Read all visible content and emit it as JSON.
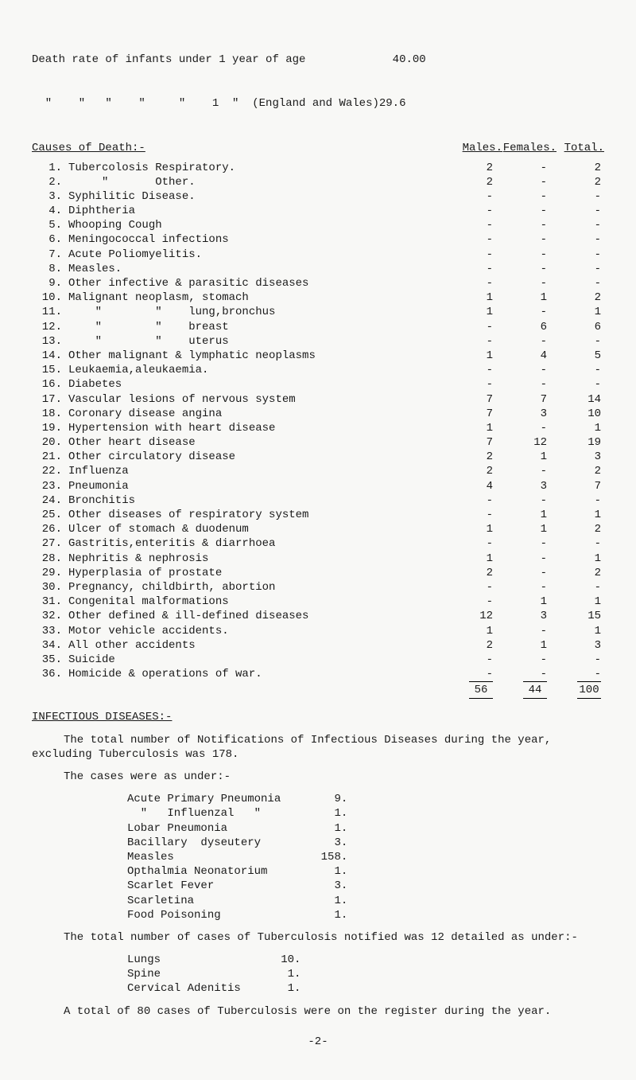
{
  "header": {
    "line1": "Death rate of infants under 1 year of age             40.00",
    "line2": "  \"    \"   \"    \"     \"    1  \"  (England and Wales)29.6"
  },
  "causes_heading": {
    "title": "Causes of Death:-",
    "col_m": "Males.",
    "col_f": "Females.",
    "col_t": "Total."
  },
  "causes": [
    {
      "n": "1.",
      "label": "Tubercolosis Respiratory.",
      "m": "2",
      "f": "-",
      "t": "2"
    },
    {
      "n": "2.",
      "label": "     \"       Other.",
      "m": "2",
      "f": "-",
      "t": "2"
    },
    {
      "n": "3.",
      "label": "Syphilitic Disease.",
      "m": "-",
      "f": "-",
      "t": "-"
    },
    {
      "n": "4.",
      "label": "Diphtheria",
      "m": "-",
      "f": "-",
      "t": "-"
    },
    {
      "n": "5.",
      "label": "Whooping Cough",
      "m": "-",
      "f": "-",
      "t": "-"
    },
    {
      "n": "6.",
      "label": "Meningococcal infections",
      "m": "-",
      "f": "-",
      "t": "-"
    },
    {
      "n": "7.",
      "label": "Acute Poliomyelitis.",
      "m": "-",
      "f": "-",
      "t": "-"
    },
    {
      "n": "8.",
      "label": "Measles.",
      "m": "-",
      "f": "-",
      "t": "-"
    },
    {
      "n": "9.",
      "label": "Other infective & parasitic diseases",
      "m": "-",
      "f": "-",
      "t": "-"
    },
    {
      "n": "10.",
      "label": "Malignant neoplasm, stomach",
      "m": "1",
      "f": "1",
      "t": "2"
    },
    {
      "n": "11.",
      "label": "    \"        \"    lung,bronchus",
      "m": "1",
      "f": "-",
      "t": "1"
    },
    {
      "n": "12.",
      "label": "    \"        \"    breast",
      "m": "-",
      "f": "6",
      "t": "6"
    },
    {
      "n": "13.",
      "label": "    \"        \"    uterus",
      "m": "-",
      "f": "-",
      "t": "-"
    },
    {
      "n": "14.",
      "label": "Other malignant & lymphatic neoplasms",
      "m": "1",
      "f": "4",
      "t": "5"
    },
    {
      "n": "15.",
      "label": "Leukaemia,aleukaemia.",
      "m": "-",
      "f": "-",
      "t": "-"
    },
    {
      "n": "16.",
      "label": "Diabetes",
      "m": "-",
      "f": "-",
      "t": "-"
    },
    {
      "n": "17.",
      "label": "Vascular lesions of nervous system",
      "m": "7",
      "f": "7",
      "t": "14"
    },
    {
      "n": "18.",
      "label": "Coronary disease angina",
      "m": "7",
      "f": "3",
      "t": "10"
    },
    {
      "n": "19.",
      "label": "Hypertension with heart disease",
      "m": "1",
      "f": "-",
      "t": "1"
    },
    {
      "n": "20.",
      "label": "Other heart disease",
      "m": "7",
      "f": "12",
      "t": "19"
    },
    {
      "n": "21.",
      "label": "Other circulatory disease",
      "m": "2",
      "f": "1",
      "t": "3"
    },
    {
      "n": "22.",
      "label": "Influenza",
      "m": "2",
      "f": "-",
      "t": "2"
    },
    {
      "n": "23.",
      "label": "Pneumonia",
      "m": "4",
      "f": "3",
      "t": "7"
    },
    {
      "n": "24.",
      "label": "Bronchitis",
      "m": "-",
      "f": "-",
      "t": "-"
    },
    {
      "n": "25.",
      "label": "Other diseases of respiratory system",
      "m": "-",
      "f": "1",
      "t": "1"
    },
    {
      "n": "26.",
      "label": "Ulcer of stomach & duodenum",
      "m": "1",
      "f": "1",
      "t": "2"
    },
    {
      "n": "27.",
      "label": "Gastritis,enteritis & diarrhoea",
      "m": "-",
      "f": "-",
      "t": "-"
    },
    {
      "n": "28.",
      "label": "Nephritis & nephrosis",
      "m": "1",
      "f": "-",
      "t": "1"
    },
    {
      "n": "29.",
      "label": "Hyperplasia of prostate",
      "m": "2",
      "f": "-",
      "t": "2"
    },
    {
      "n": "30.",
      "label": "Pregnancy, childbirth, abortion",
      "m": "-",
      "f": "-",
      "t": "-"
    },
    {
      "n": "31.",
      "label": "Congenital malformations",
      "m": "-",
      "f": "1",
      "t": "1"
    },
    {
      "n": "32.",
      "label": "Other defined & ill-defined diseases",
      "m": "12",
      "f": "3",
      "t": "15"
    },
    {
      "n": "33.",
      "label": "Motor vehicle accidents.",
      "m": "1",
      "f": "-",
      "t": "1"
    },
    {
      "n": "34.",
      "label": "All other accidents",
      "m": "2",
      "f": "1",
      "t": "3"
    },
    {
      "n": "35.",
      "label": "Suicide",
      "m": "-",
      "f": "-",
      "t": "-"
    },
    {
      "n": "36.",
      "label": "Homicide & operations of war.",
      "m": "-",
      "f": "-",
      "t": "-"
    }
  ],
  "totals": {
    "m": "56",
    "f": "44",
    "t": "100"
  },
  "infectious_heading": "INFECTIOUS DISEASES:-",
  "para1": "The total number of Notifications of Infectious Diseases during the year, excluding Tuberculosis was 178.",
  "para2": "The cases were as under:-",
  "case_list": [
    {
      "label": "Acute Primary Pneumonia",
      "val": "9."
    },
    {
      "label": "  \"   Influenzal   \"",
      "val": "1."
    },
    {
      "label": "Lobar Pneumonia",
      "val": "1."
    },
    {
      "label": "Bacillary  dyseutery",
      "val": "3."
    },
    {
      "label": "Measles",
      "val": "158."
    },
    {
      "label": "Opthalmia Neonatorium",
      "val": "1."
    },
    {
      "label": "Scarlet Fever",
      "val": "3."
    },
    {
      "label": "Scarletina",
      "val": "1."
    },
    {
      "label": "Food Poisoning",
      "val": "1."
    }
  ],
  "para3": "The total number of cases of Tuberculosis notified was 12 detailed as under:-",
  "tb_list": [
    {
      "label": "Lungs",
      "val": "10."
    },
    {
      "label": "Spine",
      "val": "1."
    },
    {
      "label": "Cervical Adenitis",
      "val": "1."
    }
  ],
  "para4": "A total of 80 cases of Tuberculosis were on the register during the year.",
  "page_num": "-2-"
}
